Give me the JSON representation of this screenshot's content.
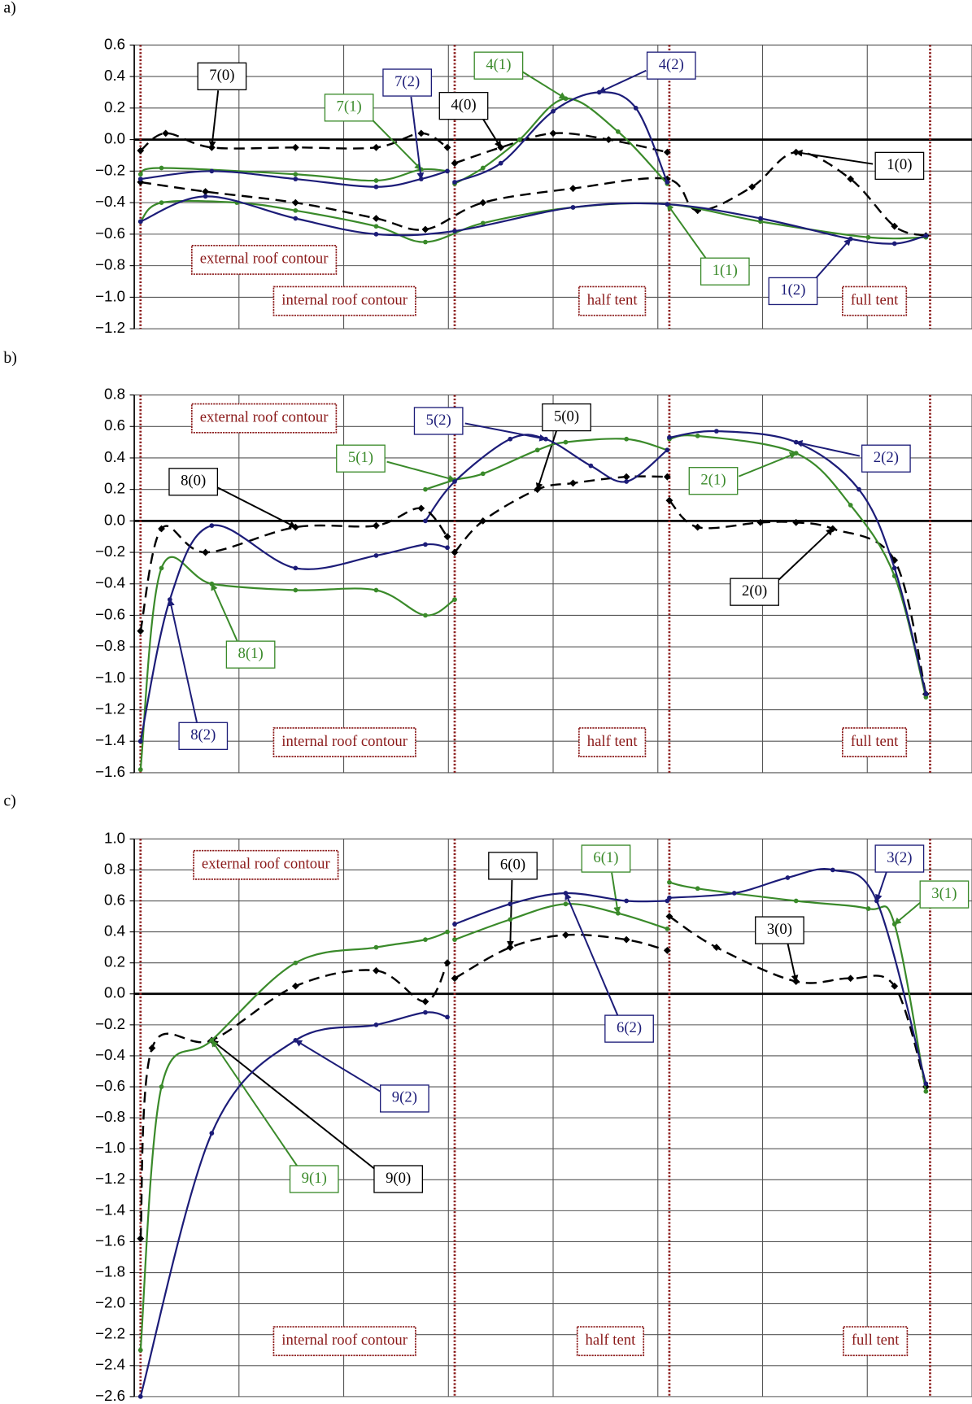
{
  "chart_data": [
    {
      "type": "line",
      "label": "a)",
      "xlim": [
        0,
        8
      ],
      "xticks": [
        0,
        1,
        2,
        3,
        4,
        5,
        6,
        7,
        8
      ],
      "ylim": [
        -1.2,
        0.6
      ],
      "yticks": [
        {
          "value": 0.6,
          "label": "0.6"
        },
        {
          "value": 0.4,
          "label": "0.4"
        },
        {
          "value": 0.2,
          "label": "0.2"
        },
        {
          "value": 0,
          "label": "0.0"
        },
        {
          "value": -0.2,
          "label": "−0.2"
        },
        {
          "value": -0.4,
          "label": "−0.4"
        },
        {
          "value": -0.6,
          "label": "−0.6"
        },
        {
          "value": -0.8,
          "label": "−0.8"
        },
        {
          "value": -1.0,
          "label": "−1.0"
        },
        {
          "value": -1.2,
          "label": "−1.2"
        }
      ],
      "grid": true,
      "boundaries": [
        0.06,
        3.06,
        5.11,
        7.6
      ],
      "region_labels": [
        "external roof contour",
        "internal roof contour",
        "half tent",
        "full tent"
      ],
      "series": [
        {
          "name": "1(0)",
          "color": "#000000",
          "dashed": true,
          "x": [
            0.06,
            0.68,
            1.54,
            2.31,
            2.78,
            3.33,
            4.19,
            5.09,
            5.38,
            5.9,
            6.32,
            6.84,
            7.26,
            7.56
          ],
          "values": [
            -0.27,
            -0.33,
            -0.4,
            -0.5,
            -0.57,
            -0.4,
            -0.31,
            -0.25,
            -0.45,
            -0.3,
            -0.08,
            -0.25,
            -0.55,
            -0.61
          ]
        },
        {
          "name": "1(1)",
          "color": "#3a8a2a",
          "dashed": false,
          "x": [
            0.06,
            0.26,
            0.98,
            1.54,
            2.31,
            2.78,
            3.33,
            4.19,
            5.09,
            5.98,
            7.01,
            7.56
          ],
          "values": [
            -0.52,
            -0.4,
            -0.4,
            -0.45,
            -0.55,
            -0.65,
            -0.53,
            -0.43,
            -0.41,
            -0.52,
            -0.62,
            -0.62
          ]
        },
        {
          "name": "1(2)",
          "color": "#1c1c78",
          "dashed": false,
          "x": [
            0.06,
            0.68,
            1.54,
            2.31,
            3.06,
            4.19,
            5.09,
            5.98,
            6.84,
            7.26,
            7.56
          ],
          "values": [
            -0.52,
            -0.36,
            -0.5,
            -0.6,
            -0.58,
            -0.43,
            -0.41,
            -0.5,
            -0.63,
            -0.66,
            -0.61
          ]
        },
        {
          "name": "4(0)",
          "color": "#000000",
          "dashed": true,
          "x": [
            3.06,
            3.5,
            4.0,
            4.53,
            5.09
          ],
          "values": [
            -0.15,
            -0.05,
            0.04,
            0.0,
            -0.08
          ]
        },
        {
          "name": "4(1)",
          "color": "#3a8a2a",
          "dashed": false,
          "x": [
            3.06,
            3.33,
            3.68,
            4.12,
            4.62,
            5.09
          ],
          "values": [
            -0.28,
            -0.18,
            0.0,
            0.26,
            0.05,
            -0.28
          ]
        },
        {
          "name": "4(2)",
          "color": "#1c1c78",
          "dashed": false,
          "x": [
            3.06,
            3.5,
            4.0,
            4.44,
            4.79,
            5.09
          ],
          "values": [
            -0.27,
            -0.15,
            0.18,
            0.3,
            0.2,
            -0.27
          ]
        },
        {
          "name": "7(0)",
          "color": "#000000",
          "dashed": true,
          "x": [
            0.06,
            0.3,
            0.74,
            1.54,
            2.31,
            2.74,
            2.99
          ],
          "values": [
            -0.07,
            0.04,
            -0.05,
            -0.05,
            -0.05,
            0.04,
            -0.05
          ]
        },
        {
          "name": "7(1)",
          "color": "#3a8a2a",
          "dashed": false,
          "x": [
            0.06,
            0.26,
            1.54,
            2.31,
            2.74,
            2.99
          ],
          "values": [
            -0.22,
            -0.18,
            -0.22,
            -0.26,
            -0.19,
            -0.2
          ]
        },
        {
          "name": "7(2)",
          "color": "#1c1c78",
          "dashed": false,
          "x": [
            0.06,
            0.74,
            1.54,
            2.31,
            2.74,
            2.99
          ],
          "values": [
            -0.25,
            -0.2,
            -0.25,
            -0.3,
            -0.25,
            -0.2
          ]
        }
      ]
    },
    {
      "type": "line",
      "label": "b)",
      "xlim": [
        0,
        8
      ],
      "xticks": [
        0,
        1,
        2,
        3,
        4,
        5,
        6,
        7,
        8
      ],
      "ylim": [
        -1.6,
        0.8
      ],
      "yticks": [
        {
          "value": 0.8,
          "label": "0.8"
        },
        {
          "value": 0.6,
          "label": "0.6"
        },
        {
          "value": 0.4,
          "label": "0.4"
        },
        {
          "value": 0.2,
          "label": "0.2"
        },
        {
          "value": 0,
          "label": "0.0"
        },
        {
          "value": -0.2,
          "label": "−0.2"
        },
        {
          "value": -0.4,
          "label": "−0.4"
        },
        {
          "value": -0.6,
          "label": "−0.6"
        },
        {
          "value": -0.8,
          "label": "−0.8"
        },
        {
          "value": -1.0,
          "label": "−1.0"
        },
        {
          "value": -1.2,
          "label": "−1.2"
        },
        {
          "value": -1.4,
          "label": "−1.4"
        },
        {
          "value": -1.6,
          "label": "−1.6"
        }
      ],
      "grid": true,
      "boundaries": [
        0.06,
        3.06,
        5.11,
        7.6
      ],
      "region_labels": [
        "external roof contour",
        "internal roof contour",
        "half tent",
        "full tent"
      ],
      "series": [
        {
          "name": "2(0)",
          "color": "#000000",
          "dashed": true,
          "x": [
            5.11,
            5.38,
            5.98,
            6.32,
            6.67,
            7.26,
            7.56
          ],
          "values": [
            0.13,
            -0.04,
            -0.01,
            -0.01,
            -0.05,
            -0.25,
            -1.1
          ]
        },
        {
          "name": "2(1)",
          "color": "#3a8a2a",
          "dashed": false,
          "x": [
            5.11,
            5.38,
            6.32,
            6.84,
            7.26,
            7.56
          ],
          "values": [
            0.52,
            0.54,
            0.43,
            0.1,
            -0.35,
            -1.12
          ]
        },
        {
          "name": "2(2)",
          "color": "#1c1c78",
          "dashed": false,
          "x": [
            5.11,
            5.56,
            6.32,
            6.92,
            7.26,
            7.56
          ],
          "values": [
            0.53,
            0.57,
            0.5,
            0.2,
            -0.3,
            -1.1
          ]
        },
        {
          "name": "5(0)",
          "color": "#000000",
          "dashed": true,
          "x": [
            3.06,
            3.33,
            3.85,
            4.19,
            4.7,
            5.09
          ],
          "values": [
            -0.2,
            0.0,
            0.2,
            0.24,
            0.28,
            0.28
          ]
        },
        {
          "name": "5(1)",
          "color": "#3a8a2a",
          "dashed": false,
          "x": [
            2.78,
            3.06,
            3.33,
            3.85,
            4.12,
            4.7,
            5.09
          ],
          "values": [
            0.2,
            0.26,
            0.3,
            0.45,
            0.5,
            0.52,
            0.45
          ]
        },
        {
          "name": "5(2)",
          "color": "#1c1c78",
          "dashed": false,
          "x": [
            2.78,
            3.06,
            3.59,
            3.93,
            4.36,
            4.7,
            5.09
          ],
          "values": [
            0.0,
            0.25,
            0.52,
            0.52,
            0.35,
            0.25,
            0.45
          ]
        },
        {
          "name": "8(0)",
          "color": "#000000",
          "dashed": true,
          "x": [
            0.06,
            0.26,
            0.68,
            1.54,
            2.31,
            2.74,
            2.99
          ],
          "values": [
            -0.7,
            -0.05,
            -0.2,
            -0.04,
            -0.03,
            0.08,
            -0.1
          ]
        },
        {
          "name": "8(1)",
          "color": "#3a8a2a",
          "dashed": false,
          "x": [
            0.06,
            0.26,
            0.74,
            1.54,
            2.31,
            2.78,
            3.06
          ],
          "values": [
            -1.58,
            -0.3,
            -0.4,
            -0.44,
            -0.44,
            -0.6,
            -0.5
          ]
        },
        {
          "name": "8(2)",
          "color": "#1c1c78",
          "dashed": false,
          "x": [
            0.06,
            0.34,
            0.74,
            1.54,
            2.31,
            2.78,
            2.99
          ],
          "values": [
            -1.4,
            -0.5,
            -0.03,
            -0.3,
            -0.22,
            -0.15,
            -0.17
          ]
        }
      ]
    },
    {
      "type": "line",
      "label": "c)",
      "xlim": [
        0,
        8
      ],
      "xticks": [
        0,
        1,
        2,
        3,
        4,
        5,
        6,
        7,
        8
      ],
      "ylim": [
        -2.6,
        1.0
      ],
      "yticks": [
        {
          "value": 1.0,
          "label": "1.0"
        },
        {
          "value": 0.8,
          "label": "0.8"
        },
        {
          "value": 0.6,
          "label": "0.6"
        },
        {
          "value": 0.4,
          "label": "0.4"
        },
        {
          "value": 0.2,
          "label": "0.2"
        },
        {
          "value": 0,
          "label": "0.0"
        },
        {
          "value": -0.2,
          "label": "−0.2"
        },
        {
          "value": -0.4,
          "label": "−0.4"
        },
        {
          "value": -0.6,
          "label": "−0.6"
        },
        {
          "value": -0.8,
          "label": "−0.8"
        },
        {
          "value": -1.0,
          "label": "−1.0"
        },
        {
          "value": -1.2,
          "label": "−1.2"
        },
        {
          "value": -1.4,
          "label": "−1.4"
        },
        {
          "value": -1.6,
          "label": "−1.6"
        },
        {
          "value": -1.8,
          "label": "−1.8"
        },
        {
          "value": -2.0,
          "label": "−2.0"
        },
        {
          "value": -2.2,
          "label": "−2.2"
        },
        {
          "value": -2.4,
          "label": "−2.4"
        },
        {
          "value": -2.6,
          "label": "−2.6"
        }
      ],
      "grid": true,
      "boundaries": [
        0.06,
        3.06,
        5.11,
        7.6
      ],
      "region_labels": [
        "external roof contour",
        "internal roof contour",
        "half tent",
        "full tent"
      ],
      "series": [
        {
          "name": "3(0)",
          "color": "#000000",
          "dashed": true,
          "x": [
            5.11,
            5.56,
            6.32,
            6.84,
            7.26,
            7.56
          ],
          "values": [
            0.5,
            0.3,
            0.08,
            0.1,
            0.05,
            -0.6
          ]
        },
        {
          "name": "3(1)",
          "color": "#3a8a2a",
          "dashed": false,
          "x": [
            5.11,
            5.38,
            6.32,
            7.01,
            7.26,
            7.56
          ],
          "values": [
            0.72,
            0.68,
            0.6,
            0.55,
            0.45,
            -0.63
          ]
        },
        {
          "name": "3(2)",
          "color": "#1c1c78",
          "dashed": false,
          "x": [
            5.11,
            5.73,
            6.24,
            6.67,
            7.09,
            7.56
          ],
          "values": [
            0.62,
            0.65,
            0.75,
            0.8,
            0.6,
            -0.58
          ]
        },
        {
          "name": "6(0)",
          "color": "#000000",
          "dashed": true,
          "x": [
            3.06,
            3.59,
            4.12,
            4.7,
            5.09
          ],
          "values": [
            0.1,
            0.3,
            0.38,
            0.35,
            0.28
          ]
        },
        {
          "name": "6(1)",
          "color": "#3a8a2a",
          "dashed": false,
          "x": [
            3.06,
            3.59,
            4.12,
            4.62,
            5.09
          ],
          "values": [
            0.35,
            0.48,
            0.58,
            0.52,
            0.42
          ]
        },
        {
          "name": "6(2)",
          "color": "#1c1c78",
          "dashed": false,
          "x": [
            3.06,
            3.59,
            4.12,
            4.7,
            5.09
          ],
          "values": [
            0.45,
            0.58,
            0.65,
            0.6,
            0.6
          ]
        },
        {
          "name": "9(0)",
          "color": "#000000",
          "dashed": true,
          "x": [
            0.06,
            0.17,
            0.74,
            1.54,
            2.31,
            2.78,
            2.99
          ],
          "values": [
            -1.58,
            -0.35,
            -0.3,
            0.05,
            0.15,
            -0.05,
            0.2
          ]
        },
        {
          "name": "9(1)",
          "color": "#3a8a2a",
          "dashed": false,
          "x": [
            0.06,
            0.26,
            0.74,
            1.54,
            2.31,
            2.78,
            2.99
          ],
          "values": [
            -2.3,
            -0.6,
            -0.3,
            0.2,
            0.3,
            0.35,
            0.4
          ]
        },
        {
          "name": "9(2)",
          "color": "#1c1c78",
          "dashed": false,
          "x": [
            0.06,
            0.74,
            1.54,
            2.31,
            2.78,
            2.99
          ],
          "values": [
            -2.6,
            -0.9,
            -0.3,
            -0.2,
            -0.12,
            -0.15
          ]
        }
      ]
    }
  ]
}
